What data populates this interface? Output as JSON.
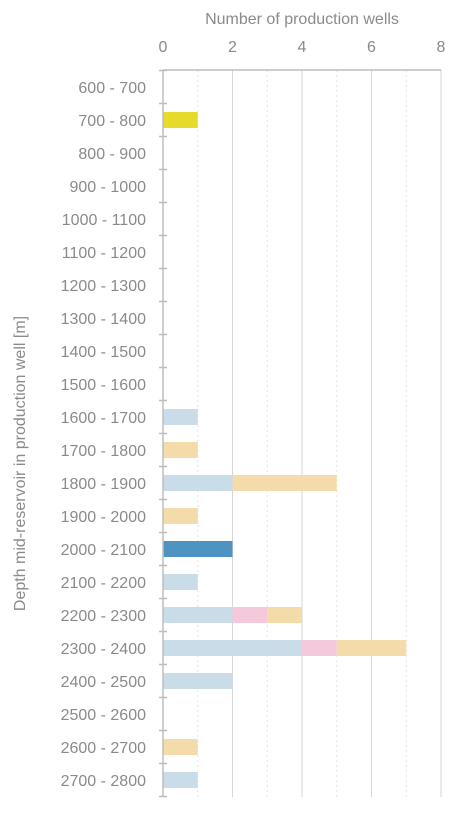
{
  "chart_data": {
    "type": "bar",
    "orientation": "horizontal",
    "stacked": true,
    "xlabel": "Number of production wells",
    "ylabel": "Depth mid-reservoir in production well [m]",
    "xlim": [
      0,
      8
    ],
    "xticks": [
      0,
      2,
      4,
      6,
      8
    ],
    "grid": true,
    "categories": [
      "600 - 700",
      "700 - 800",
      "800 - 900",
      "900 - 1000",
      "1000 - 1100",
      "1100 - 1200",
      "1200 - 1300",
      "1300 - 1400",
      "1400 - 1500",
      "1500 - 1600",
      "1600 - 1700",
      "1700 - 1800",
      "1800 - 1900",
      "1900 - 2000",
      "2000 - 2100",
      "2100 - 2200",
      "2200 - 2300",
      "2300 - 2400",
      "2400 - 2500",
      "2500 - 2600",
      "2600 - 2700",
      "2700 - 2800"
    ],
    "series": [
      {
        "color": "#e6da2a",
        "values": [
          0,
          1,
          0,
          0,
          0,
          0,
          0,
          0,
          0,
          0,
          0,
          0,
          0,
          0,
          0,
          0,
          0,
          0,
          0,
          0,
          0,
          0
        ]
      },
      {
        "color": "#c9dce8",
        "values": [
          0,
          0,
          0,
          0,
          0,
          0,
          0,
          0,
          0,
          0,
          1,
          0,
          2,
          0,
          0,
          1,
          2,
          4,
          2,
          0,
          0,
          1
        ]
      },
      {
        "color": "#4f93c3",
        "values": [
          0,
          0,
          0,
          0,
          0,
          0,
          0,
          0,
          0,
          0,
          0,
          0,
          0,
          0,
          2,
          0,
          0,
          0,
          0,
          0,
          0,
          0
        ]
      },
      {
        "color": "#f4c9dc",
        "values": [
          0,
          0,
          0,
          0,
          0,
          0,
          0,
          0,
          0,
          0,
          0,
          0,
          0,
          0,
          0,
          0,
          1,
          1,
          0,
          0,
          0,
          0
        ]
      },
      {
        "color": "#f3dcaa",
        "values": [
          0,
          0,
          0,
          0,
          0,
          0,
          0,
          0,
          0,
          0,
          0,
          1,
          3,
          1,
          0,
          0,
          1,
          2,
          0,
          0,
          1,
          0
        ]
      }
    ]
  }
}
